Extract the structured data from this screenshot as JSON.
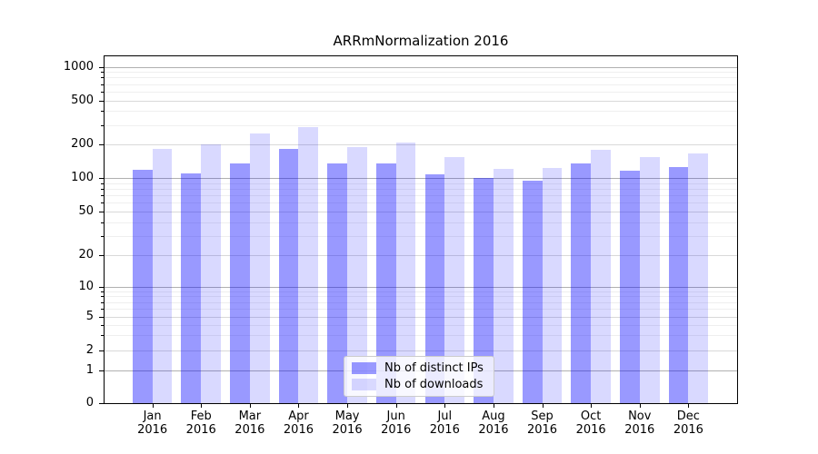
{
  "chart_data": {
    "type": "bar",
    "title": "ARRmNormalization 2016",
    "yscale": "symlog",
    "xlabel": "",
    "ylabel": "",
    "categories": [
      "Jan",
      "Feb",
      "Mar",
      "Apr",
      "May",
      "Jun",
      "Jul",
      "Aug",
      "Sep",
      "Oct",
      "Nov",
      "Dec"
    ],
    "category_year": "2016",
    "series": [
      {
        "name": "Nb of distinct IPs",
        "color": "#9999ff",
        "fill": "rgba(0,0,255,0.4)",
        "values": [
          118,
          110,
          134,
          183,
          134,
          134,
          108,
          100,
          95,
          134,
          116,
          125
        ]
      },
      {
        "name": "Nb of downloads",
        "color": "#d9d9ff",
        "fill": "rgba(0,0,255,0.15)",
        "values": [
          183,
          200,
          253,
          284,
          190,
          209,
          154,
          121,
          124,
          180,
          155,
          167
        ]
      }
    ],
    "y_ticks": [
      0,
      1,
      2,
      5,
      10,
      20,
      50,
      100,
      200,
      500,
      1000
    ],
    "ylim": [
      0,
      1270
    ],
    "grid": true,
    "legend": {
      "position": "lower center",
      "entries": [
        "Nb of distinct IPs",
        "Nb of downloads"
      ]
    }
  }
}
